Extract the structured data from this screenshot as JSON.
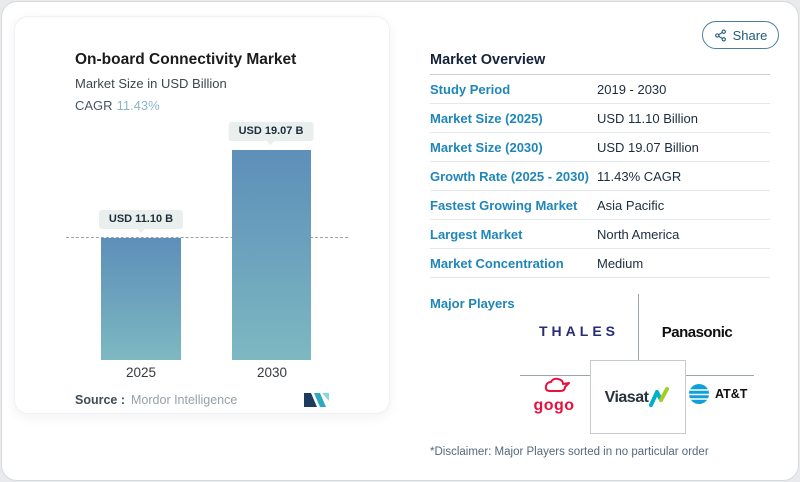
{
  "share": {
    "label": "Share"
  },
  "chart": {
    "cagr_label": "CAGR",
    "source_label": "Source :",
    "source_value": "Mordor Intelligence"
  },
  "chart_data": {
    "type": "bar",
    "title": "On-board Connectivity Market",
    "subtitle": "Market Size in USD Billion",
    "cagr": "11.43%",
    "categories": [
      "2025",
      "2030"
    ],
    "values": [
      11.1,
      19.07
    ],
    "bar_labels": [
      "USD 11.10 B",
      "USD 19.07 B"
    ],
    "ylabel": "USD Billion",
    "ylim": [
      0,
      22
    ],
    "reference_line": 11.1,
    "grid": "off",
    "source": "Mordor Intelligence"
  },
  "overview": {
    "title": "Market Overview",
    "rows": [
      {
        "label": "Study Period",
        "value": "2019 - 2030"
      },
      {
        "label": "Market Size (2025)",
        "value": "USD 11.10 Billion"
      },
      {
        "label": "Market Size (2030)",
        "value": "USD 19.07 Billion"
      },
      {
        "label": "Growth Rate (2025 - 2030)",
        "value": "11.43% CAGR"
      },
      {
        "label": "Fastest Growing Market",
        "value": "Asia Pacific"
      },
      {
        "label": "Largest Market",
        "value": "North America"
      },
      {
        "label": "Market Concentration",
        "value": "Medium"
      }
    ],
    "major_players_label": "Major Players",
    "players": [
      "THALES",
      "Panasonic",
      "gogo",
      "Viasat",
      "AT&T"
    ],
    "disclaimer": "*Disclaimer: Major Players sorted in no particular order"
  },
  "colors": {
    "accent_blue": "#1f86b9",
    "navy_text": "#1d2d3e",
    "cagr_blue": "#8db4cd",
    "bar_top": "#5d8fb9",
    "bar_bottom": "#7db8c2",
    "pill_bg": "#e9efec",
    "share_border": "#4b7f9e",
    "thales_navy": "#272c77",
    "gogo_red": "#e8103e",
    "viasat_teal": "#00b0ca",
    "viasat_green": "#a2cf22",
    "att_blue": "#0fa0dc",
    "mordor_navy": "#1d3b5f",
    "mordor_teal": "#2fa8c5"
  }
}
